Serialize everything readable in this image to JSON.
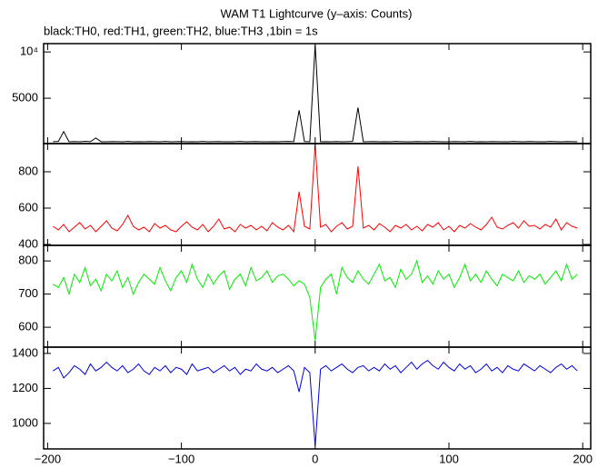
{
  "chart_data": {
    "type": "line",
    "title": "WAM T1 Lightcurve (y–axis: Counts)",
    "subtitle": "black:TH0, red:TH1, green:TH2, blue:TH3 ,1bin = 1s",
    "xlim": [
      -203,
      206
    ],
    "xticks": [
      {
        "value": -200,
        "label": "−200"
      },
      {
        "value": -100,
        "label": "−100"
      },
      0,
      100,
      200
    ],
    "x": [
      -196,
      -192,
      -188,
      -184,
      -180,
      -176,
      -172,
      -168,
      -164,
      -160,
      -156,
      -152,
      -148,
      -144,
      -140,
      -136,
      -132,
      -128,
      -124,
      -120,
      -116,
      -112,
      -108,
      -104,
      -100,
      -96,
      -92,
      -88,
      -84,
      -80,
      -76,
      -72,
      -68,
      -64,
      -60,
      -56,
      -52,
      -48,
      -44,
      -40,
      -36,
      -32,
      -28,
      -24,
      -20,
      -16,
      -12,
      -8,
      -4,
      0,
      4,
      8,
      12,
      16,
      20,
      24,
      28,
      32,
      36,
      40,
      44,
      48,
      52,
      56,
      60,
      64,
      68,
      72,
      76,
      80,
      84,
      88,
      92,
      96,
      100,
      104,
      108,
      112,
      116,
      120,
      124,
      128,
      132,
      136,
      140,
      144,
      148,
      152,
      156,
      160,
      164,
      168,
      172,
      176,
      180,
      184,
      188,
      192,
      196
    ],
    "panels": [
      {
        "ylim": [
          100,
          10900
        ],
        "yticks": [
          5000,
          {
            "value": 10000,
            "label": "10⁴"
          }
        ],
        "series": [
          {
            "name": "TH0",
            "color": "#000000",
            "values": [
              310,
              330,
              1400,
              300,
              320,
              290,
              340,
              310,
              700,
              300,
              290,
              320,
              310,
              300,
              330,
              290,
              310,
              300,
              320,
              310,
              300,
              330,
              290,
              310,
              320,
              300,
              310,
              290,
              330,
              300,
              310,
              320,
              300,
              290,
              310,
              330,
              300,
              310,
              320,
              300,
              290,
              310,
              300,
              320,
              330,
              310,
              3700,
              320,
              300,
              10800,
              300,
              310,
              290,
              320,
              300,
              310,
              330,
              4000,
              300,
              310,
              320,
              290,
              310,
              300,
              330,
              310,
              300,
              290,
              320,
              310,
              300,
              330,
              310,
              290,
              300,
              320,
              310,
              300,
              330,
              290,
              310,
              300,
              320,
              310,
              300,
              290,
              330,
              310,
              300,
              320,
              310,
              300,
              290,
              330,
              310,
              300,
              320,
              310,
              300
            ]
          }
        ]
      },
      {
        "ylim": [
          395,
          955
        ],
        "yticks": [
          400,
          600,
          800
        ],
        "series": [
          {
            "name": "TH1",
            "color": "#ff0000",
            "values": [
              500,
              480,
              510,
              470,
              495,
              520,
              485,
              505,
              470,
              500,
              530,
              490,
              475,
              510,
              560,
              500,
              480,
              495,
              470,
              515,
              490,
              505,
              480,
              470,
              500,
              525,
              495,
              480,
              510,
              470,
              500,
              540,
              485,
              495,
              470,
              510,
              490,
              505,
              480,
              500,
              475,
              520,
              495,
              480,
              505,
              470,
              690,
              500,
              485,
              950,
              495,
              510,
              470,
              500,
              520,
              485,
              500,
              830,
              490,
              505,
              480,
              515,
              495,
              470,
              505,
              490,
              510,
              480,
              500,
              475,
              510,
              495,
              520,
              480,
              500,
              470,
              505,
              490,
              515,
              495,
              480,
              510,
              550,
              495,
              485,
              505,
              520,
              490,
              530,
              500,
              505,
              485,
              510,
              495,
              540,
              480,
              520,
              500,
              490
            ]
          }
        ]
      },
      {
        "ylim": [
          540,
          847
        ],
        "yticks": [
          600,
          700,
          800
        ],
        "series": [
          {
            "name": "TH2",
            "color": "#00ee00",
            "values": [
              730,
              720,
              750,
              700,
              760,
              735,
              780,
              725,
              745,
              710,
              760,
              740,
              770,
              720,
              750,
              700,
              735,
              760,
              745,
              730,
              780,
              740,
              710,
              750,
              770,
              735,
              790,
              745,
              720,
              760,
              730,
              755,
              770,
              715,
              745,
              760,
              725,
              780,
              740,
              750,
              770,
              735,
              755,
              760,
              745,
              725,
              740,
              730,
              690,
              560,
              720,
              745,
              760,
              700,
              780,
              750,
              735,
              770,
              745,
              730,
              760,
              790,
              740,
              750,
              720,
              775,
              745,
              760,
              800,
              735,
              755,
              730,
              770,
              745,
              760,
              720,
              750,
              790,
              740,
              760,
              735,
              770,
              745,
              725,
              760,
              750,
              740,
              770,
              735,
              755,
              745,
              760,
              730,
              750,
              770,
              740,
              790,
              745,
              760
            ]
          }
        ]
      },
      {
        "ylim": [
          854,
          1436
        ],
        "yticks": [
          1000,
          1200,
          1400
        ],
        "series": [
          {
            "name": "TH3",
            "color": "#0000dd",
            "values": [
              1300,
              1320,
              1260,
              1290,
              1330,
              1310,
              1280,
              1340,
              1300,
              1320,
              1350,
              1320,
              1300,
              1330,
              1290,
              1310,
              1340,
              1300,
              1280,
              1320,
              1300,
              1330,
              1290,
              1320,
              1310,
              1280,
              1340,
              1300,
              1310,
              1320,
              1290,
              1310,
              1330,
              1300,
              1320,
              1280,
              1310,
              1300,
              1340,
              1310,
              1300,
              1320,
              1290,
              1310,
              1330,
              1300,
              1180,
              1320,
              1290,
              870,
              1310,
              1330,
              1300,
              1320,
              1340,
              1310,
              1290,
              1320,
              1330,
              1300,
              1320,
              1300,
              1340,
              1310,
              1330,
              1290,
              1320,
              1350,
              1310,
              1340,
              1360,
              1330,
              1310,
              1350,
              1320,
              1300,
              1340,
              1310,
              1330,
              1290,
              1310,
              1340,
              1300,
              1320,
              1290,
              1330,
              1310,
              1300,
              1340,
              1320,
              1300,
              1330,
              1310,
              1290,
              1320,
              1340,
              1310,
              1330,
              1300
            ]
          }
        ]
      }
    ]
  }
}
